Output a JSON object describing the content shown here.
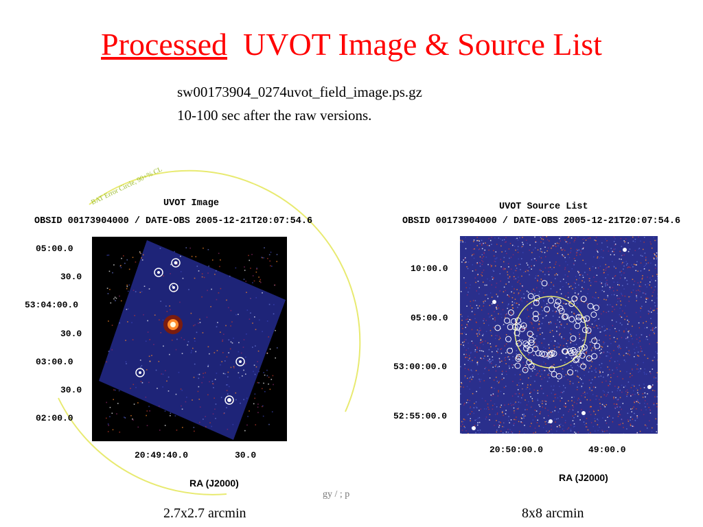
{
  "title": {
    "underlined": "Processed",
    "rest": "UVOT  Image  &  Source List"
  },
  "subtitle": {
    "line1": "sw00173904_0274uvot_field_image.ps.gz",
    "line2": "10-100 sec after the raw versions."
  },
  "left_panel": {
    "annotation": "BAT Error Circle, 90+% CL",
    "title": "UVOT Image",
    "obs": "OBSID 00173904000 / DATE-OBS 2005-12-21T20:07:54.6",
    "y_ticks": [
      "05:00.0",
      "30.0",
      "53:04:00.0",
      "30.0",
      "03:00.0",
      "30.0",
      "02:00.0"
    ],
    "x_ticks": [
      "20:49:40.0",
      "30.0"
    ],
    "xlabel": "RA (J2000)",
    "caption": "2.7x2.7 arcmin"
  },
  "right_panel": {
    "title": "UVOT Source List",
    "obs": "OBSID 00173904000 / DATE-OBS 2005-12-21T20:07:54.6",
    "y_ticks": [
      "10:00.0",
      "05:00.0",
      "53:00:00.0",
      "52:55:00.0"
    ],
    "x_ticks": [
      "20:50:00.0",
      "49:00.0"
    ],
    "xlabel": "RA (J2000)",
    "caption": "8x8 arcmin"
  },
  "footer_fragment": "gy / ; p",
  "colors": {
    "title": "#ff0000",
    "circle": "#e8ea70",
    "sky": "#2a2f8c"
  }
}
